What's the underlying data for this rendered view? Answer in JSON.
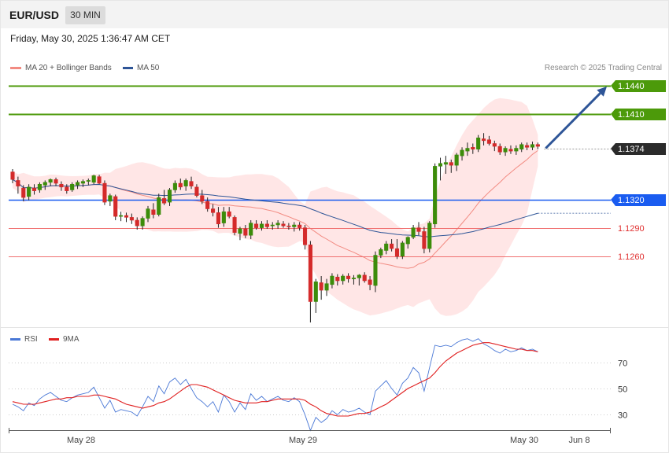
{
  "header": {
    "symbol": "EUR/USD",
    "timeframe": "30 MIN",
    "datetime": "Friday, May 30, 2025 1:36:47 AM CET",
    "credit": "Research © 2025 Trading Central"
  },
  "legend": {
    "main": [
      {
        "label": "MA 20 + Bollinger Bands",
        "color": "#f28b82"
      },
      {
        "label": "MA 50",
        "color": "#2e5597"
      }
    ],
    "rsi": [
      {
        "label": "RSI",
        "color": "#4a78d6"
      },
      {
        "label": "9MA",
        "color": "#e02020"
      }
    ]
  },
  "chart_data": [
    {
      "type": "candlestick",
      "instrument": "EUR/USD",
      "ylim": [
        1.1185,
        1.1455
      ],
      "levels": [
        {
          "label": "1.1440",
          "value": 1.144,
          "style": "resistance-filled",
          "color": "#4c9a0a"
        },
        {
          "label": "1.1410",
          "value": 1.141,
          "style": "resistance-filled",
          "color": "#4c9a0a"
        },
        {
          "label": "1.1374",
          "value": 1.1374,
          "style": "last-price",
          "color": "#2b2b2b"
        },
        {
          "label": "1.1320",
          "value": 1.132,
          "style": "pivot",
          "color": "#1a5cf0"
        },
        {
          "label": "1.1290",
          "value": 1.129,
          "style": "support-text",
          "color": "#e03030"
        },
        {
          "label": "1.1260",
          "value": 1.126,
          "style": "support-text",
          "color": "#e03030"
        }
      ],
      "forecast_arrow": {
        "from": 1.1374,
        "to": 1.144,
        "color": "#2e5597"
      },
      "ohlc": [
        [
          1.1349,
          1.1352,
          1.1337,
          1.1341
        ],
        [
          1.134,
          1.1344,
          1.1326,
          1.1334
        ],
        [
          1.1332,
          1.1335,
          1.1318,
          1.1322
        ],
        [
          1.1323,
          1.1336,
          1.1319,
          1.1333
        ],
        [
          1.1332,
          1.1336,
          1.1325,
          1.1329
        ],
        [
          1.133,
          1.1338,
          1.1327,
          1.1336
        ],
        [
          1.1335,
          1.134,
          1.133,
          1.1338
        ],
        [
          1.1338,
          1.1342,
          1.1334,
          1.1341
        ],
        [
          1.1341,
          1.1343,
          1.1334,
          1.1337
        ],
        [
          1.1336,
          1.1339,
          1.1329,
          1.1333
        ],
        [
          1.1333,
          1.1336,
          1.1326,
          1.1329
        ],
        [
          1.133,
          1.1338,
          1.1328,
          1.1336
        ],
        [
          1.1335,
          1.134,
          1.1331,
          1.1338
        ],
        [
          1.1337,
          1.1341,
          1.1333,
          1.1339
        ],
        [
          1.1339,
          1.1342,
          1.1335,
          1.134
        ],
        [
          1.1338,
          1.1346,
          1.1336,
          1.1345
        ],
        [
          1.1344,
          1.1346,
          1.1336,
          1.1337
        ],
        [
          1.1337,
          1.134,
          1.1314,
          1.1317
        ],
        [
          1.1318,
          1.1326,
          1.1313,
          1.1324
        ],
        [
          1.1323,
          1.1325,
          1.1298,
          1.1302
        ],
        [
          1.1302,
          1.1307,
          1.1297,
          1.1303
        ],
        [
          1.1303,
          1.1306,
          1.1296,
          1.1301
        ],
        [
          1.1301,
          1.1305,
          1.1294,
          1.1298
        ],
        [
          1.1298,
          1.1301,
          1.1288,
          1.1292
        ],
        [
          1.1292,
          1.1302,
          1.1288,
          1.13
        ],
        [
          1.13,
          1.1313,
          1.1296,
          1.131
        ],
        [
          1.1309,
          1.1316,
          1.13,
          1.1304
        ],
        [
          1.1304,
          1.1326,
          1.1302,
          1.1322
        ],
        [
          1.1321,
          1.133,
          1.1314,
          1.1316
        ],
        [
          1.1317,
          1.1332,
          1.1313,
          1.133
        ],
        [
          1.133,
          1.134,
          1.1327,
          1.1337
        ],
        [
          1.1337,
          1.1342,
          1.133,
          1.1333
        ],
        [
          1.1334,
          1.1342,
          1.1329,
          1.134
        ],
        [
          1.1339,
          1.1344,
          1.1331,
          1.1334
        ],
        [
          1.1333,
          1.1336,
          1.1322,
          1.1324
        ],
        [
          1.1324,
          1.133,
          1.1315,
          1.1318
        ],
        [
          1.1318,
          1.1322,
          1.1307,
          1.131
        ],
        [
          1.131,
          1.1315,
          1.1302,
          1.1306
        ],
        [
          1.1306,
          1.1312,
          1.129,
          1.1294
        ],
        [
          1.1295,
          1.1312,
          1.1291,
          1.1307
        ],
        [
          1.1307,
          1.1312,
          1.13,
          1.1302
        ],
        [
          1.1301,
          1.1303,
          1.1282,
          1.1285
        ],
        [
          1.1284,
          1.1291,
          1.1277,
          1.1289
        ],
        [
          1.1289,
          1.1293,
          1.1279,
          1.1282
        ],
        [
          1.1282,
          1.1298,
          1.1278,
          1.1295
        ],
        [
          1.1294,
          1.1298,
          1.1288,
          1.129
        ],
        [
          1.129,
          1.1297,
          1.1287,
          1.1294
        ],
        [
          1.1294,
          1.1298,
          1.1289,
          1.1291
        ],
        [
          1.1292,
          1.1296,
          1.1288,
          1.1293
        ],
        [
          1.1293,
          1.1298,
          1.1289,
          1.1295
        ],
        [
          1.1294,
          1.1297,
          1.129,
          1.1292
        ],
        [
          1.1292,
          1.1295,
          1.1288,
          1.1291
        ],
        [
          1.1291,
          1.1296,
          1.1286,
          1.1293
        ],
        [
          1.1293,
          1.1296,
          1.1287,
          1.129
        ],
        [
          1.129,
          1.1293,
          1.1267,
          1.1272
        ],
        [
          1.1272,
          1.1276,
          1.119,
          1.1212
        ],
        [
          1.1212,
          1.1236,
          1.12,
          1.1233
        ],
        [
          1.1232,
          1.1239,
          1.1214,
          1.1224
        ],
        [
          1.1224,
          1.1236,
          1.1218,
          1.1231
        ],
        [
          1.123,
          1.1242,
          1.1226,
          1.1239
        ],
        [
          1.1238,
          1.1241,
          1.1229,
          1.1234
        ],
        [
          1.1234,
          1.1241,
          1.123,
          1.1239
        ],
        [
          1.1239,
          1.1242,
          1.1232,
          1.1236
        ],
        [
          1.1236,
          1.124,
          1.123,
          1.1237
        ],
        [
          1.1237,
          1.1241,
          1.1229,
          1.124
        ],
        [
          1.124,
          1.1243,
          1.1232,
          1.1234
        ],
        [
          1.1235,
          1.1239,
          1.1224,
          1.123
        ],
        [
          1.1229,
          1.1265,
          1.1222,
          1.1261
        ],
        [
          1.1261,
          1.1269,
          1.1258,
          1.1267
        ],
        [
          1.1266,
          1.1276,
          1.1262,
          1.1273
        ],
        [
          1.1273,
          1.1278,
          1.1265,
          1.1268
        ],
        [
          1.1268,
          1.1278,
          1.1257,
          1.126
        ],
        [
          1.126,
          1.1276,
          1.1257,
          1.1274
        ],
        [
          1.1273,
          1.1281,
          1.1268,
          1.128
        ],
        [
          1.128,
          1.1293,
          1.1278,
          1.129
        ],
        [
          1.129,
          1.1296,
          1.1282,
          1.1286
        ],
        [
          1.1286,
          1.1291,
          1.1263,
          1.1268
        ],
        [
          1.1268,
          1.1297,
          1.1264,
          1.1295
        ],
        [
          1.1294,
          1.1358,
          1.129,
          1.1355
        ],
        [
          1.1355,
          1.1364,
          1.134,
          1.1358
        ],
        [
          1.1357,
          1.1366,
          1.1347,
          1.1359
        ],
        [
          1.1359,
          1.1362,
          1.1348,
          1.1356
        ],
        [
          1.1356,
          1.1369,
          1.135,
          1.1367
        ],
        [
          1.1366,
          1.1375,
          1.1361,
          1.1372
        ],
        [
          1.1371,
          1.138,
          1.1366,
          1.1374
        ],
        [
          1.1375,
          1.1379,
          1.1368,
          1.1373
        ],
        [
          1.1373,
          1.1388,
          1.137,
          1.1385
        ],
        [
          1.1384,
          1.139,
          1.1377,
          1.1382
        ],
        [
          1.1383,
          1.1387,
          1.1377,
          1.1379
        ],
        [
          1.1379,
          1.1382,
          1.1371,
          1.1376
        ],
        [
          1.1376,
          1.1379,
          1.1367,
          1.137
        ],
        [
          1.137,
          1.1376,
          1.1366,
          1.1374
        ],
        [
          1.1373,
          1.1377,
          1.1368,
          1.1371
        ],
        [
          1.1371,
          1.1377,
          1.1367,
          1.1374
        ],
        [
          1.1373,
          1.138,
          1.137,
          1.1378
        ],
        [
          1.1377,
          1.138,
          1.1372,
          1.1375
        ],
        [
          1.1375,
          1.1381,
          1.1372,
          1.1378
        ],
        [
          1.1378,
          1.138,
          1.1373,
          1.1376
        ]
      ]
    },
    {
      "type": "line",
      "title": "RSI",
      "ylim": [
        20,
        80
      ],
      "y_ticks": [
        "70",
        "50",
        "30"
      ],
      "series": [
        {
          "name": "RSI",
          "color": "#4a78d6",
          "values": [
            38,
            36,
            33,
            39,
            37,
            42,
            45,
            47,
            44,
            41,
            40,
            43,
            45,
            46,
            47,
            51,
            43,
            35,
            41,
            32,
            34,
            33,
            32,
            29,
            36,
            44,
            40,
            52,
            46,
            55,
            58,
            53,
            57,
            50,
            43,
            40,
            36,
            40,
            32,
            45,
            40,
            32,
            39,
            34,
            46,
            41,
            44,
            40,
            42,
            44,
            41,
            40,
            43,
            40,
            30,
            18,
            28,
            24,
            27,
            33,
            30,
            34,
            32,
            33,
            35,
            32,
            30,
            48,
            52,
            56,
            50,
            45,
            54,
            58,
            66,
            62,
            48,
            66,
            83,
            82,
            83,
            82,
            85,
            87,
            88,
            86,
            88,
            84,
            82,
            79,
            77,
            80,
            78,
            79,
            81,
            79,
            80,
            78
          ]
        },
        {
          "name": "9MA",
          "color": "#e02020",
          "values": [
            40,
            39,
            38,
            38,
            38,
            39,
            40,
            41,
            42,
            42,
            43,
            43,
            44,
            44,
            44,
            45,
            45,
            44,
            43,
            42,
            40,
            38,
            37,
            36,
            35,
            36,
            37,
            39,
            40,
            42,
            45,
            48,
            51,
            53,
            53,
            52,
            51,
            49,
            47,
            45,
            43,
            41,
            40,
            39,
            39,
            39,
            40,
            40,
            41,
            42,
            42,
            42,
            42,
            42,
            41,
            38,
            36,
            33,
            31,
            30,
            29,
            29,
            29,
            30,
            31,
            31,
            32,
            34,
            36,
            38,
            41,
            44,
            47,
            50,
            52,
            54,
            56,
            58,
            62,
            67,
            71,
            74,
            77,
            79,
            81,
            83,
            84,
            85,
            85,
            84,
            83,
            82,
            81,
            80,
            80,
            79,
            79,
            78
          ]
        }
      ]
    }
  ],
  "x_axis": {
    "ticks": [
      "May 28",
      "May 29",
      "May 30",
      "Jun 8"
    ]
  }
}
